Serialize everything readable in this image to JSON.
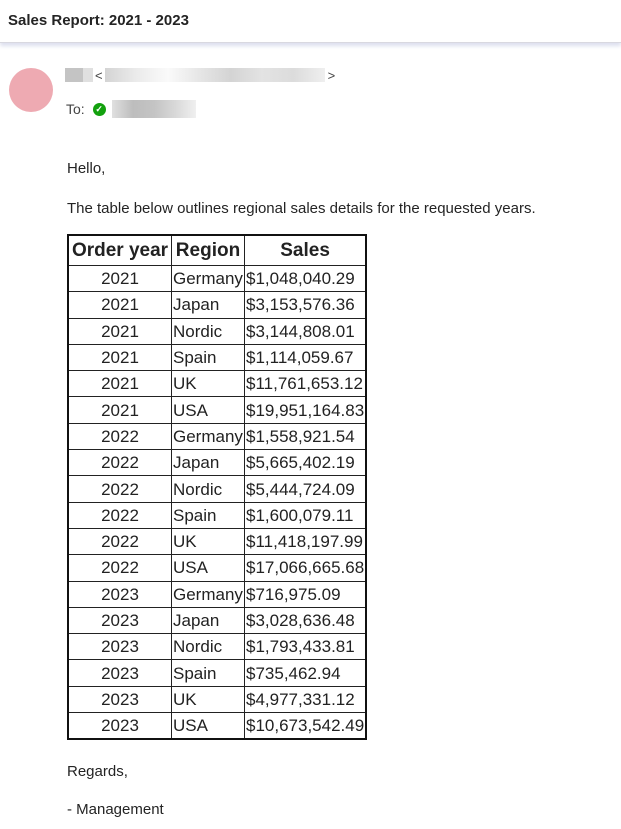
{
  "header": {
    "title": "Sales Report: 2021 - 2023"
  },
  "message": {
    "to_label": "To:",
    "greeting": "Hello,",
    "intro": "The table below outlines regional sales details for the requested years.",
    "closing": "Regards,",
    "signature": "- Management"
  },
  "table": {
    "headers": [
      "Order year",
      "Region",
      "Sales"
    ],
    "rows": [
      [
        "2021",
        "Germany",
        "$1,048,040.29"
      ],
      [
        "2021",
        "Japan",
        "$3,153,576.36"
      ],
      [
        "2021",
        "Nordic",
        "$3,144,808.01"
      ],
      [
        "2021",
        "Spain",
        "$1,114,059.67"
      ],
      [
        "2021",
        "UK",
        "$11,761,653.12"
      ],
      [
        "2021",
        "USA",
        "$19,951,164.83"
      ],
      [
        "2022",
        "Germany",
        "$1,558,921.54"
      ],
      [
        "2022",
        "Japan",
        "$5,665,402.19"
      ],
      [
        "2022",
        "Nordic",
        "$5,444,724.09"
      ],
      [
        "2022",
        "Spain",
        "$1,600,079.11"
      ],
      [
        "2022",
        "UK",
        "$11,418,197.99"
      ],
      [
        "2022",
        "USA",
        "$17,066,665.68"
      ],
      [
        "2023",
        "Germany",
        "$716,975.09"
      ],
      [
        "2023",
        "Japan",
        "$3,028,636.48"
      ],
      [
        "2023",
        "Nordic",
        "$1,793,433.81"
      ],
      [
        "2023",
        "Spain",
        "$735,462.94"
      ],
      [
        "2023",
        "UK",
        "$4,977,331.12"
      ],
      [
        "2023",
        "USA",
        "$10,673,542.49"
      ]
    ]
  }
}
